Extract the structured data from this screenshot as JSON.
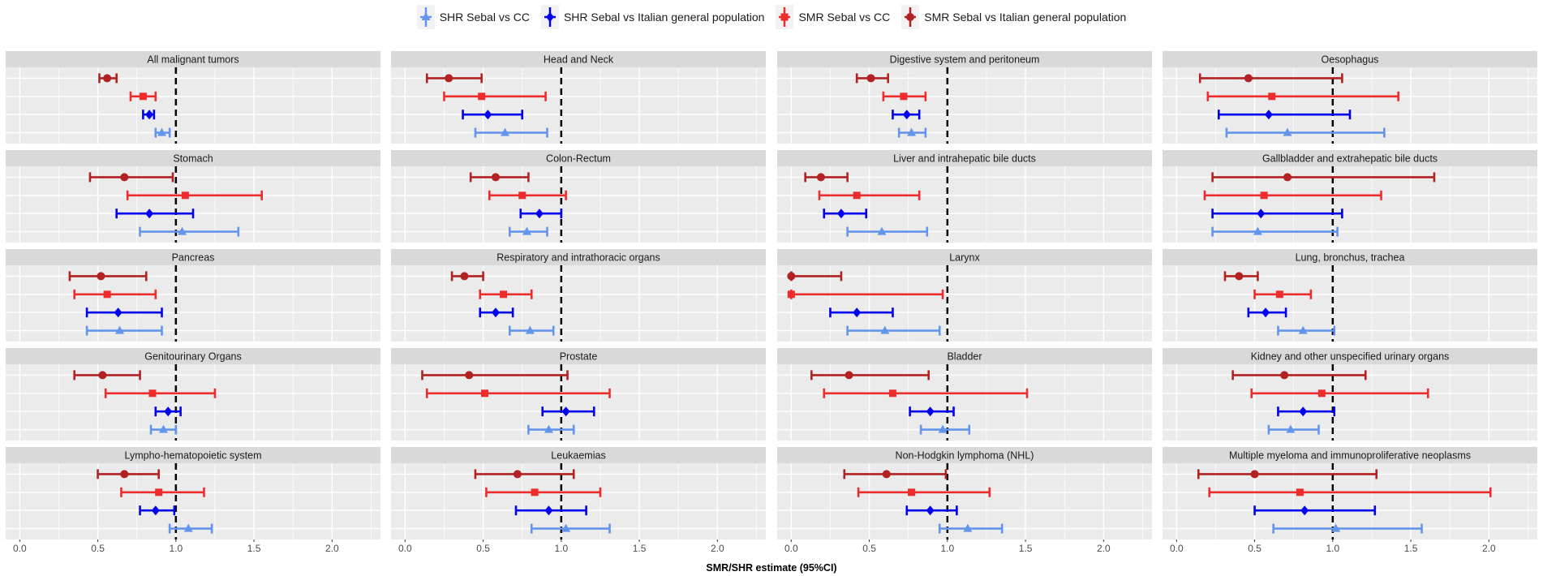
{
  "chart_data": {
    "type": "forest",
    "xlabel": "SMR/SHR estimate (95%CI)",
    "xlim": [
      -0.09,
      2.31
    ],
    "xticks": [
      0.0,
      0.5,
      1.0,
      1.5,
      2.0
    ],
    "xtick_labels": [
      "0.0",
      "0.5",
      "1.0",
      "1.5",
      "2.0"
    ],
    "reference_line": 1.0,
    "grid": true,
    "legend_position": "top",
    "series": [
      {
        "key": "shr_cc",
        "name": "SHR Sebal vs CC",
        "color": "#6495ED",
        "marker": "triangle"
      },
      {
        "key": "shr_it",
        "name": "SHR Sebal vs Italian general population",
        "color": "#0000EE",
        "marker": "diamond"
      },
      {
        "key": "smr_cc",
        "name": "SMR Sebal vs CC",
        "color": "#EE2C2C",
        "marker": "square"
      },
      {
        "key": "smr_it",
        "name": "SMR Sebal vs Italian general population",
        "color": "#B22222",
        "marker": "circle"
      }
    ],
    "row_order_top_to_bottom": [
      "smr_it",
      "smr_cc",
      "shr_it",
      "shr_cc"
    ],
    "panels": [
      {
        "title": "All malignant tumors",
        "smr_it": [
          0.56,
          0.51,
          0.62
        ],
        "smr_cc": [
          0.79,
          0.71,
          0.87
        ],
        "shr_it": [
          0.83,
          0.79,
          0.86
        ],
        "shr_cc": [
          0.91,
          0.87,
          0.96
        ]
      },
      {
        "title": "Head and Neck",
        "smr_it": [
          0.28,
          0.14,
          0.49
        ],
        "smr_cc": [
          0.49,
          0.25,
          0.9
        ],
        "shr_it": [
          0.53,
          0.37,
          0.75
        ],
        "shr_cc": [
          0.64,
          0.45,
          0.91
        ]
      },
      {
        "title": "Digestive system and peritoneum",
        "smr_it": [
          0.51,
          0.42,
          0.62
        ],
        "smr_cc": [
          0.72,
          0.59,
          0.86
        ],
        "shr_it": [
          0.74,
          0.65,
          0.82
        ],
        "shr_cc": [
          0.77,
          0.69,
          0.86
        ]
      },
      {
        "title": "Oesophagus",
        "smr_it": [
          0.46,
          0.15,
          1.06
        ],
        "smr_cc": [
          0.61,
          0.2,
          1.42
        ],
        "shr_it": [
          0.59,
          0.27,
          1.11
        ],
        "shr_cc": [
          0.71,
          0.32,
          1.33
        ]
      },
      {
        "title": "Stomach",
        "smr_it": [
          0.67,
          0.45,
          0.98
        ],
        "smr_cc": [
          1.06,
          0.69,
          1.55
        ],
        "shr_it": [
          0.83,
          0.62,
          1.11
        ],
        "shr_cc": [
          1.04,
          0.77,
          1.4
        ]
      },
      {
        "title": "Colon-Rectum",
        "smr_it": [
          0.58,
          0.42,
          0.79
        ],
        "smr_cc": [
          0.75,
          0.54,
          1.03
        ],
        "shr_it": [
          0.86,
          0.74,
          1.0
        ],
        "shr_cc": [
          0.78,
          0.67,
          0.91
        ]
      },
      {
        "title": "Liver and intrahepatic bile ducts",
        "smr_it": [
          0.19,
          0.09,
          0.36
        ],
        "smr_cc": [
          0.42,
          0.18,
          0.82
        ],
        "shr_it": [
          0.32,
          0.21,
          0.48
        ],
        "shr_cc": [
          0.58,
          0.36,
          0.87
        ]
      },
      {
        "title": "Gallbladder and extrahepatic bile ducts",
        "smr_it": [
          0.71,
          0.23,
          1.65
        ],
        "smr_cc": [
          0.56,
          0.18,
          1.31
        ],
        "shr_it": [
          0.54,
          0.23,
          1.06
        ],
        "shr_cc": [
          0.52,
          0.23,
          1.03
        ]
      },
      {
        "title": "Pancreas",
        "smr_it": [
          0.52,
          0.32,
          0.81
        ],
        "smr_cc": [
          0.56,
          0.35,
          0.87
        ],
        "shr_it": [
          0.63,
          0.43,
          0.91
        ],
        "shr_cc": [
          0.64,
          0.43,
          0.91
        ]
      },
      {
        "title": "Respiratory and intrathoracic organs",
        "smr_it": [
          0.38,
          0.3,
          0.5
        ],
        "smr_cc": [
          0.63,
          0.48,
          0.81
        ],
        "shr_it": [
          0.58,
          0.48,
          0.69
        ],
        "shr_cc": [
          0.8,
          0.67,
          0.95
        ]
      },
      {
        "title": "Larynx",
        "smr_it": [
          0.0,
          0.0,
          0.32
        ],
        "smr_cc": [
          0.0,
          0.0,
          0.97
        ],
        "shr_it": [
          0.42,
          0.25,
          0.65
        ],
        "shr_cc": [
          0.6,
          0.36,
          0.95
        ]
      },
      {
        "title": "Lung, bronchus, trachea",
        "smr_it": [
          0.4,
          0.31,
          0.52
        ],
        "smr_cc": [
          0.66,
          0.5,
          0.86
        ],
        "shr_it": [
          0.57,
          0.46,
          0.7
        ],
        "shr_cc": [
          0.81,
          0.65,
          1.01
        ]
      },
      {
        "title": "Genitourinary Organs",
        "smr_it": [
          0.53,
          0.35,
          0.77
        ],
        "smr_cc": [
          0.85,
          0.55,
          1.25
        ],
        "shr_it": [
          0.95,
          0.87,
          1.03
        ],
        "shr_cc": [
          0.92,
          0.84,
          1.0
        ]
      },
      {
        "title": "Prostate",
        "smr_it": [
          0.41,
          0.11,
          1.04
        ],
        "smr_cc": [
          0.51,
          0.14,
          1.31
        ],
        "shr_it": [
          1.03,
          0.88,
          1.21
        ],
        "shr_cc": [
          0.92,
          0.79,
          1.08
        ]
      },
      {
        "title": "Bladder",
        "smr_it": [
          0.37,
          0.13,
          0.88
        ],
        "smr_cc": [
          0.65,
          0.21,
          1.51
        ],
        "shr_it": [
          0.89,
          0.76,
          1.04
        ],
        "shr_cc": [
          0.97,
          0.83,
          1.14
        ]
      },
      {
        "title": "Kidney and other unspecified urinary organs",
        "smr_it": [
          0.69,
          0.36,
          1.21
        ],
        "smr_cc": [
          0.93,
          0.48,
          1.61
        ],
        "shr_it": [
          0.81,
          0.65,
          1.01
        ],
        "shr_cc": [
          0.73,
          0.59,
          0.91
        ]
      },
      {
        "title": "Lympho-hematopoietic system",
        "smr_it": [
          0.67,
          0.5,
          0.89
        ],
        "smr_cc": [
          0.89,
          0.65,
          1.18
        ],
        "shr_it": [
          0.87,
          0.77,
          0.99
        ],
        "shr_cc": [
          1.08,
          0.96,
          1.23
        ]
      },
      {
        "title": "Leukaemias",
        "smr_it": [
          0.72,
          0.45,
          1.08
        ],
        "smr_cc": [
          0.83,
          0.52,
          1.25
        ],
        "shr_it": [
          0.92,
          0.71,
          1.16
        ],
        "shr_cc": [
          1.03,
          0.81,
          1.31
        ]
      },
      {
        "title": "Non-Hodgkin lymphoma (NHL)",
        "smr_it": [
          0.61,
          0.34,
          0.99
        ],
        "smr_cc": [
          0.77,
          0.43,
          1.27
        ],
        "shr_it": [
          0.89,
          0.74,
          1.06
        ],
        "shr_cc": [
          1.13,
          0.95,
          1.35
        ]
      },
      {
        "title": "Multiple myeloma and immunoproliferative neoplasms",
        "smr_it": [
          0.5,
          0.14,
          1.28
        ],
        "smr_cc": [
          0.79,
          0.21,
          2.01
        ],
        "shr_it": [
          0.82,
          0.5,
          1.27
        ],
        "shr_cc": [
          1.02,
          0.62,
          1.57
        ]
      }
    ]
  }
}
